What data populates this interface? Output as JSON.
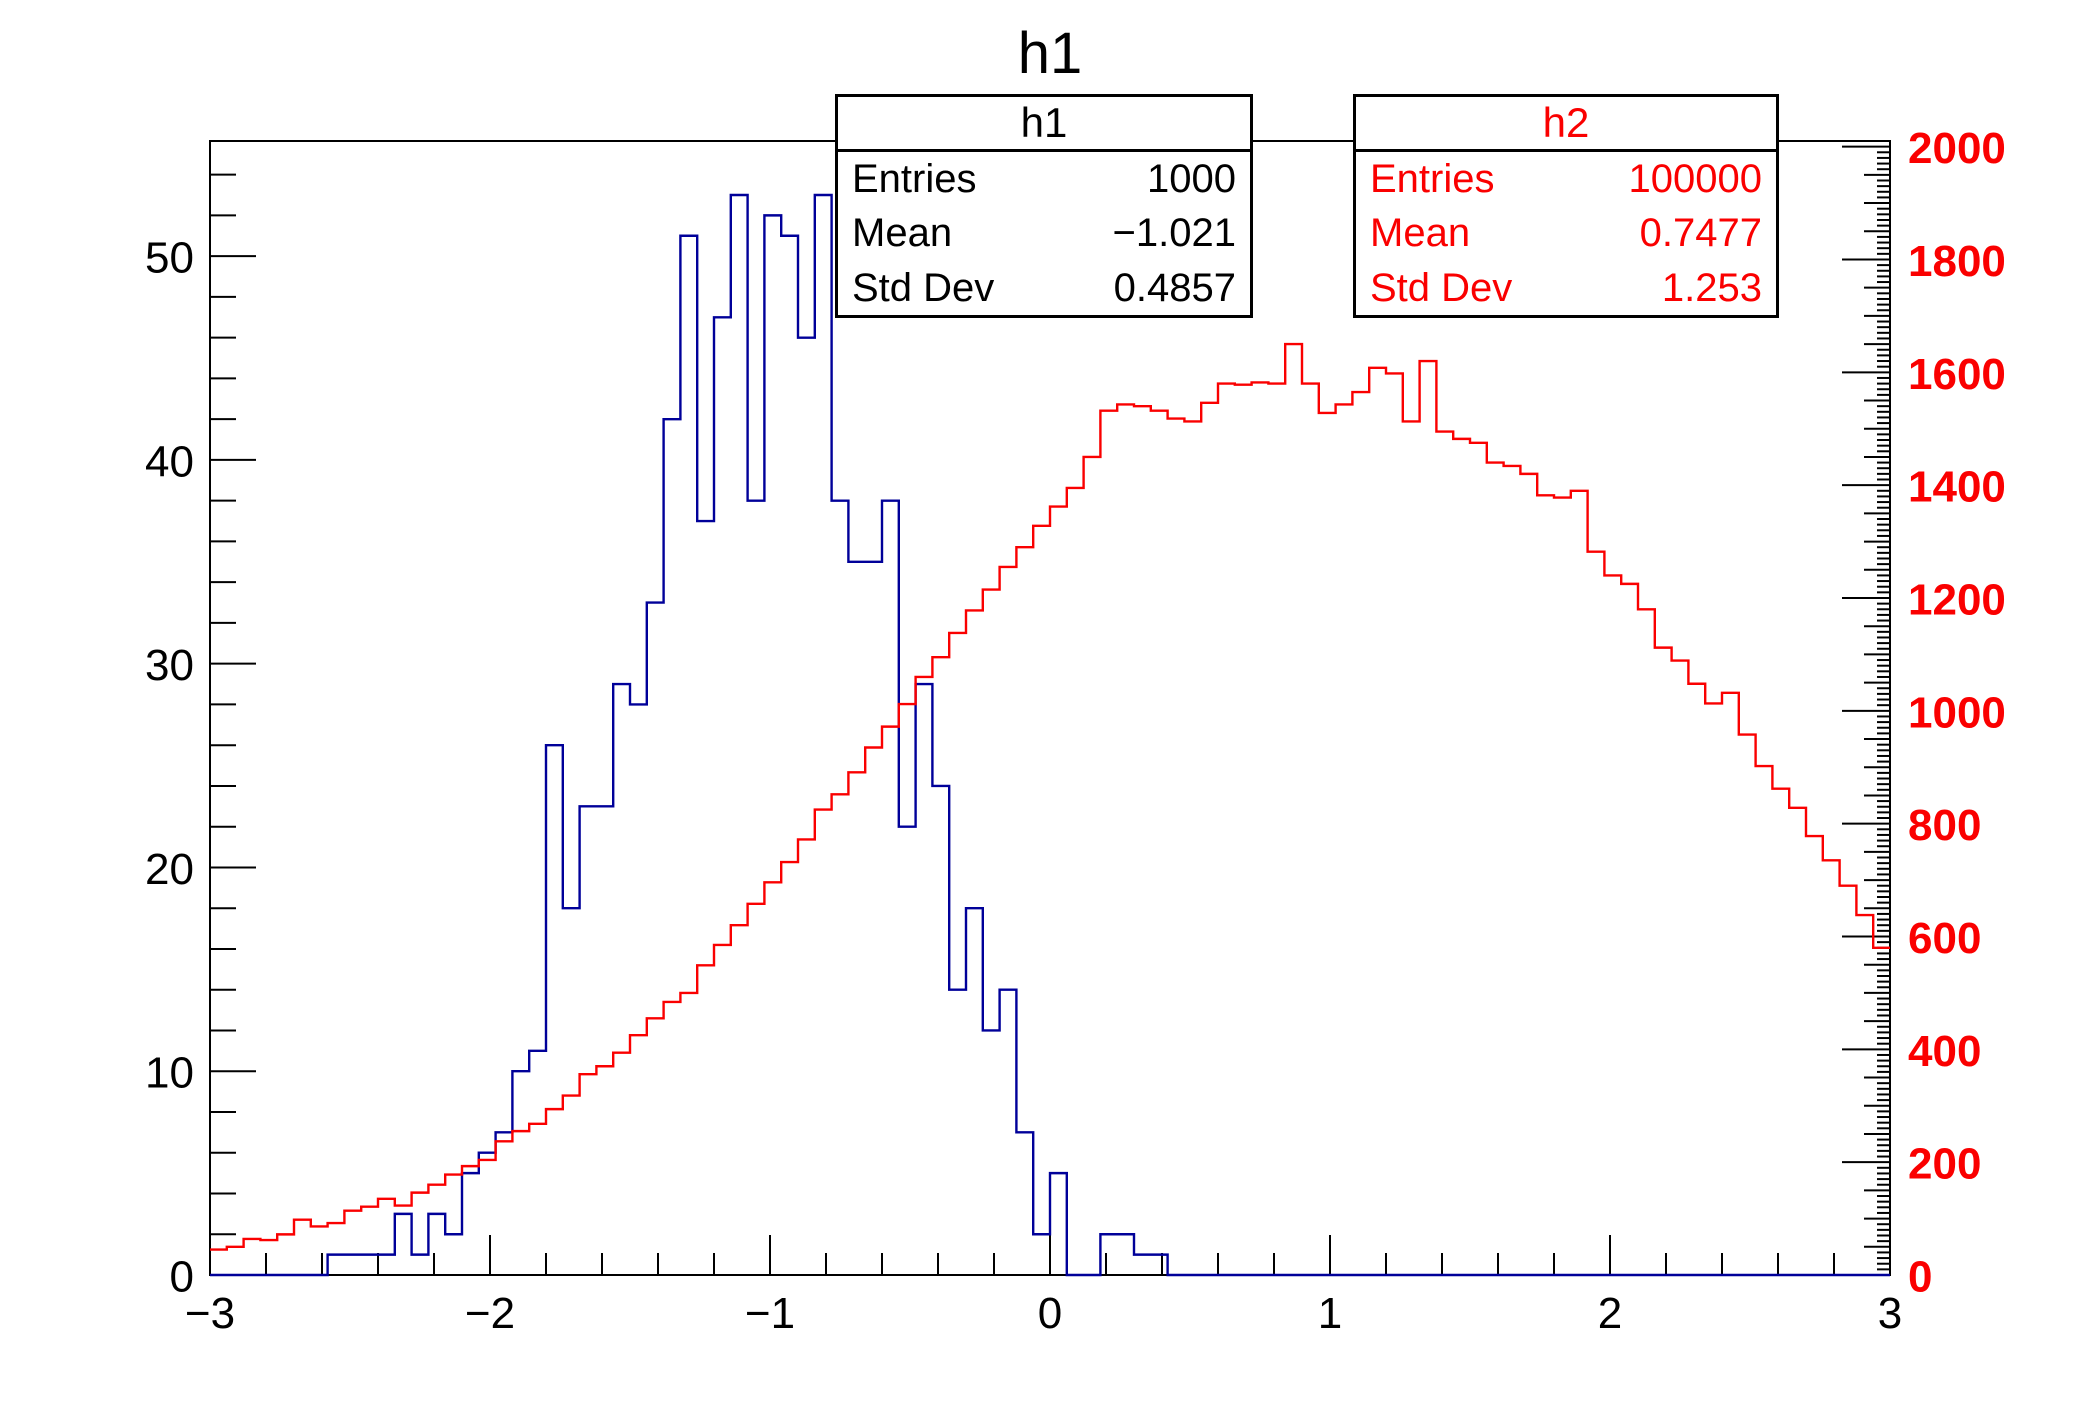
{
  "title": "h1",
  "colors": {
    "h1_line": "#000099",
    "h2_line": "#fa0000",
    "axis_line": "#000000",
    "right_axis_label": "#fa0000",
    "background": "#ffffff"
  },
  "stat_boxes": [
    {
      "title": "h1",
      "color": "#000000",
      "rows": [
        [
          "Entries",
          "1000"
        ],
        [
          "Mean",
          "−1.021"
        ],
        [
          "Std Dev",
          "0.4857"
        ]
      ]
    },
    {
      "title": "h2",
      "color": "#fa0000",
      "rows": [
        [
          "Entries",
          "100000"
        ],
        [
          "Mean",
          "0.7477"
        ],
        [
          "Std Dev",
          "1.253"
        ]
      ]
    }
  ],
  "chart_data": {
    "type": "bar",
    "subtype": "step-histogram-overlay",
    "title": "h1",
    "xlabel": "",
    "ylabel": "",
    "grid": false,
    "legend_position": "none",
    "x": {
      "min": -3,
      "max": 3,
      "bins": 100,
      "bin_width": 0.06,
      "major_ticks": [
        -3,
        -2,
        -1,
        0,
        1,
        2,
        3
      ],
      "tick_labels": [
        "−3",
        "−2",
        "−1",
        "0",
        "1",
        "2",
        "3"
      ],
      "minor_step": 0.2
    },
    "y_left": {
      "min": 0,
      "max": 55.65,
      "major_ticks": [
        0,
        10,
        20,
        30,
        40,
        50
      ],
      "tick_labels": [
        "0",
        "10",
        "20",
        "30",
        "40",
        "50"
      ],
      "minor_step": 2,
      "label_color": "#000000"
    },
    "y_right": {
      "min": 0,
      "max": 2010,
      "major_ticks": [
        0,
        200,
        400,
        600,
        800,
        1000,
        1200,
        1400,
        1600,
        1800,
        2000
      ],
      "tick_labels": [
        "0",
        "200",
        "400",
        "600",
        "800",
        "1000",
        "1200",
        "1400",
        "1600",
        "1800",
        "2000"
      ],
      "medium_step": 50,
      "minor_step": 10,
      "label_color": "#fa0000"
    },
    "series": [
      {
        "name": "h1",
        "axis": "left",
        "color": "#000099",
        "entries": 1000,
        "mean": -1.021,
        "std_dev": 0.4857,
        "values": [
          0,
          0,
          0,
          0,
          0,
          0,
          0,
          1,
          1,
          1,
          1,
          3,
          1,
          3,
          2,
          5,
          6,
          7,
          10,
          11,
          26,
          18,
          23,
          23,
          29,
          28,
          33,
          42,
          51,
          37,
          47,
          53,
          38,
          52,
          51,
          46,
          53,
          38,
          35,
          35,
          38,
          22,
          29,
          24,
          14,
          18,
          12,
          14,
          7,
          2,
          5,
          0,
          0,
          2,
          2,
          1,
          1,
          0,
          0,
          0,
          0,
          0,
          0,
          0,
          0,
          0,
          0,
          0,
          0,
          0,
          0,
          0,
          0,
          0,
          0,
          0,
          0,
          0,
          0,
          0,
          0,
          0,
          0,
          0,
          0,
          0,
          0,
          0,
          0,
          0,
          0,
          0,
          0,
          0,
          0,
          0,
          0,
          0,
          0,
          0
        ]
      },
      {
        "name": "h2",
        "axis": "right",
        "color": "#fa0000",
        "entries": 100000,
        "mean": 0.7477,
        "std_dev": 1.253,
        "values": [
          45,
          50,
          64,
          62,
          72,
          98,
          86,
          92,
          114,
          121,
          135,
          123,
          146,
          160,
          178,
          193,
          204,
          237,
          255,
          268,
          294,
          318,
          356,
          370,
          394,
          425,
          455,
          484,
          500,
          549,
          585,
          620,
          658,
          696,
          732,
          772,
          825,
          852,
          891,
          935,
          972,
          1012,
          1060,
          1095,
          1138,
          1178,
          1215,
          1255,
          1290,
          1328,
          1362,
          1395,
          1450,
          1532,
          1543,
          1540,
          1532,
          1518,
          1513,
          1546,
          1580,
          1578,
          1582,
          1580,
          1650,
          1580,
          1528,
          1543,
          1565,
          1608,
          1598,
          1513,
          1620,
          1495,
          1482,
          1475,
          1440,
          1434,
          1420,
          1382,
          1378,
          1390,
          1282,
          1240,
          1225,
          1180,
          1112,
          1089,
          1048,
          1013,
          1032,
          958,
          902,
          862,
          828,
          778,
          735,
          690,
          638,
          580
        ]
      }
    ]
  }
}
